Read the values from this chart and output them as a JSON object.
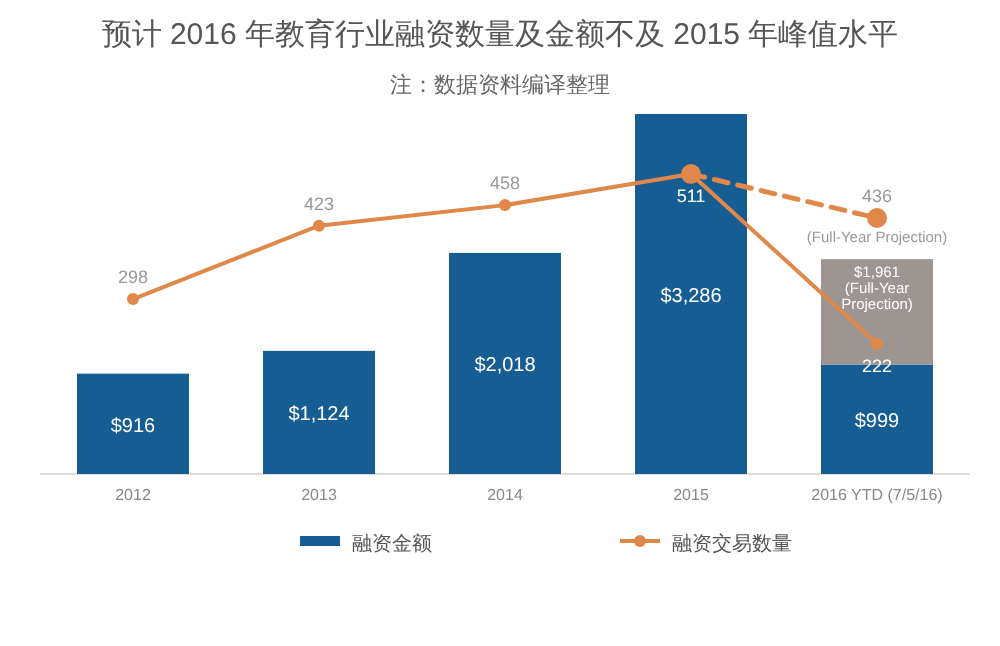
{
  "chart_data": {
    "type": "bar",
    "title": "预计 2016 年教育行业融资数量及金额不及 2015 年峰值水平",
    "subtitle": "注：数据资料编译整理",
    "categories": [
      "2012",
      "2013",
      "2014",
      "2015",
      "2016 YTD (7/5/16)"
    ],
    "stacked": true,
    "legend": "bottom",
    "marker": "circle",
    "series": [
      {
        "name": "融资金额",
        "color": "#165d94",
        "values": [
          916,
          1124,
          2018,
          3286,
          999
        ],
        "value_labels": [
          "$916",
          "$1,124",
          "$2,018",
          "$3,286",
          "$999"
        ]
      },
      {
        "color": "#9c9591",
        "values": [
          null,
          null,
          null,
          null,
          962
        ]
      },
      {
        "name": "融资交易数量",
        "type": "line",
        "axis": "y2",
        "color": "#e0874a",
        "values": [
          298,
          423,
          458,
          511,
          222
        ],
        "value_labels": [
          "298",
          "423",
          "458",
          "511",
          "222"
        ]
      },
      {
        "type": "line",
        "axis": "y2",
        "color": "#e0874a",
        "line_style": "dashed",
        "values": [
          null,
          null,
          null,
          511,
          436
        ],
        "value_labels": [
          null,
          null,
          null,
          null,
          "436"
        ]
      }
    ],
    "totals": [
      null,
      null,
      null,
      null,
      "$1,961 (Full-Year Projection)"
    ],
    "annotations": [
      "(Full-Year Projection)"
    ]
  }
}
